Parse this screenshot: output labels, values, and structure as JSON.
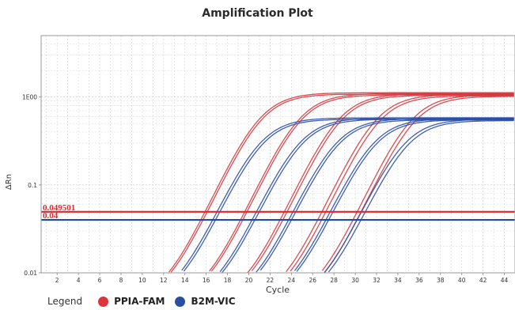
{
  "chart_data": {
    "type": "line",
    "title": "Amplification Plot",
    "xlabel": "Cycle",
    "ylabel": "ΔRn",
    "xlim": [
      0.5,
      45
    ],
    "ylim": [
      0.01,
      5
    ],
    "yscale": "log",
    "grid": true,
    "x_ticks": [
      2,
      4,
      6,
      8,
      10,
      12,
      14,
      16,
      18,
      20,
      22,
      24,
      26,
      28,
      30,
      32,
      34,
      36,
      38,
      40,
      42,
      44
    ],
    "x_tick_labels": [
      "2",
      "4",
      "6",
      "8",
      "10",
      "12",
      "14",
      "16",
      "18",
      "20",
      "22",
      "24",
      "26",
      "28",
      "30",
      "32",
      "34",
      "36",
      "38",
      "40",
      "42",
      "44"
    ],
    "y_ticks": [
      0.01,
      0.1,
      1
    ],
    "y_tick_labels": [
      "0.01",
      "0.1",
      "1E00"
    ],
    "thresholds": [
      {
        "value": 0.049501,
        "label": "0.049501",
        "color": "#e0262b"
      },
      {
        "value": 0.04,
        "label": "0.04",
        "color": "#1f4aa8"
      }
    ],
    "series": [
      {
        "name": "PPIA-FAM",
        "color": "#d6393f",
        "curves": [
          {
            "ct": 17.6,
            "plateau": 1.12
          },
          {
            "ct": 17.75,
            "plateau": 1.08
          },
          {
            "ct": 21.3,
            "plateau": 1.1
          },
          {
            "ct": 21.45,
            "plateau": 1.06
          },
          {
            "ct": 25.0,
            "plateau": 1.09
          },
          {
            "ct": 25.2,
            "plateau": 1.05
          },
          {
            "ct": 28.5,
            "plateau": 1.07
          },
          {
            "ct": 28.8,
            "plateau": 1.03
          },
          {
            "ct": 31.8,
            "plateau": 1.06
          },
          {
            "ct": 32.1,
            "plateau": 1.02
          }
        ]
      },
      {
        "name": "B2M-VIC",
        "color": "#2a4ea8",
        "curves": [
          {
            "ct": 17.6,
            "plateau": 0.58
          },
          {
            "ct": 17.8,
            "plateau": 0.56
          },
          {
            "ct": 21.3,
            "plateau": 0.58
          },
          {
            "ct": 21.5,
            "plateau": 0.56
          },
          {
            "ct": 24.7,
            "plateau": 0.57
          },
          {
            "ct": 24.9,
            "plateau": 0.55
          },
          {
            "ct": 28.2,
            "plateau": 0.57
          },
          {
            "ct": 28.4,
            "plateau": 0.55
          },
          {
            "ct": 31.1,
            "plateau": 0.56
          },
          {
            "ct": 31.4,
            "plateau": 0.54
          }
        ]
      }
    ]
  },
  "legend": {
    "title": "Legend",
    "items": [
      {
        "label": "PPIA-FAM",
        "color": "#e0323a"
      },
      {
        "label": "B2M-VIC",
        "color": "#2b4ea5"
      }
    ]
  }
}
